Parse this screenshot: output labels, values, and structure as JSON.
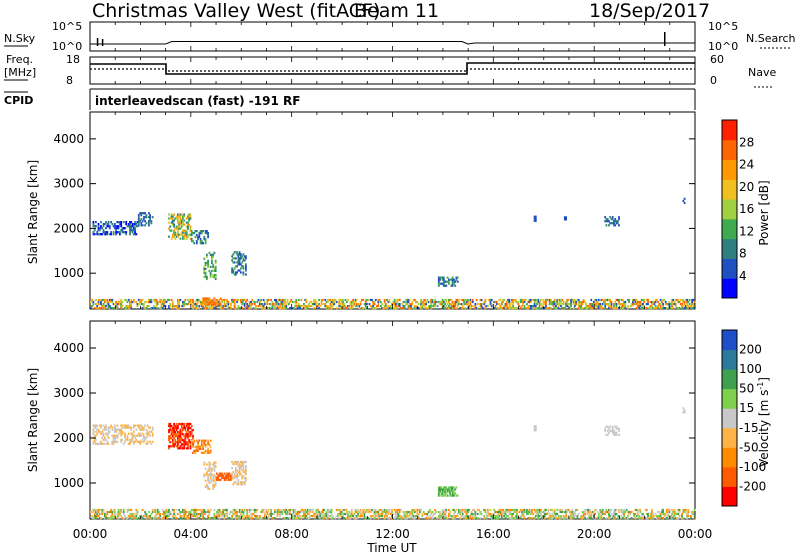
{
  "header": {
    "station": "Christmas Valley West (fitACF)",
    "beam": "Beam 11",
    "date": "18/Sep/2017"
  },
  "noise_panel": {
    "left_label": "N.Sky",
    "right_label": "N.Search",
    "ytick_top_left": "10^5",
    "ytick_bottom_left": "10^0",
    "ytick_top_right": "10^5",
    "ytick_bottom_right": "10^0",
    "y_scale": "log"
  },
  "freq_panel": {
    "left_label_line1": "Freq.",
    "left_label_line2": "[MHz]",
    "right_label": "Nave",
    "freq_ticks": [
      "18",
      "8"
    ],
    "nave_ticks": [
      "60",
      "0"
    ],
    "freq_range": [
      8,
      18
    ],
    "nave_range": [
      0,
      60
    ]
  },
  "cpid": {
    "label": "CPID",
    "value": "interleavedscan (fast) -191 RF"
  },
  "chart_data": [
    {
      "type": "heatmap",
      "name": "power",
      "ylabel": "Slant Range [km]",
      "yticks": [
        "4000",
        "3000",
        "2000",
        "1000"
      ],
      "ylim": [
        200,
        4600
      ],
      "colorbar": {
        "label": "Power [dB]",
        "ticks": [
          "28",
          "24",
          "20",
          "16",
          "12",
          "8",
          "4"
        ],
        "range": [
          0,
          32
        ],
        "colors": [
          "#0000ff",
          "#1f4fc0",
          "#2f7f7f",
          "#3faa50",
          "#9fd040",
          "#f0c020",
          "#ff9900",
          "#ff6600",
          "#ff2000"
        ]
      }
    },
    {
      "type": "heatmap",
      "name": "velocity",
      "ylabel": "Slant Range [km]",
      "yticks": [
        "4000",
        "3000",
        "2000",
        "1000"
      ],
      "ylim": [
        200,
        4600
      ],
      "colorbar": {
        "label": "Velocity [m s",
        "label_sup": "-1",
        "label_close": "]",
        "ticks": [
          "200",
          "100",
          "50",
          "15",
          "-15",
          "-50",
          "-100",
          "-200"
        ],
        "range": [
          -250,
          250
        ],
        "colors": [
          "#ff0000",
          "#ff5a00",
          "#ff8c00",
          "#ffb347",
          "#c8c8c8",
          "#7fd04c",
          "#3fa04f",
          "#2a7a9a",
          "#1f4fc8"
        ]
      }
    }
  ],
  "x_axis": {
    "label": "Time UT",
    "ticks": [
      "00:00",
      "04:00",
      "08:00",
      "12:00",
      "16:00",
      "20:00",
      "00:00"
    ],
    "range_hours": [
      0,
      24
    ]
  }
}
